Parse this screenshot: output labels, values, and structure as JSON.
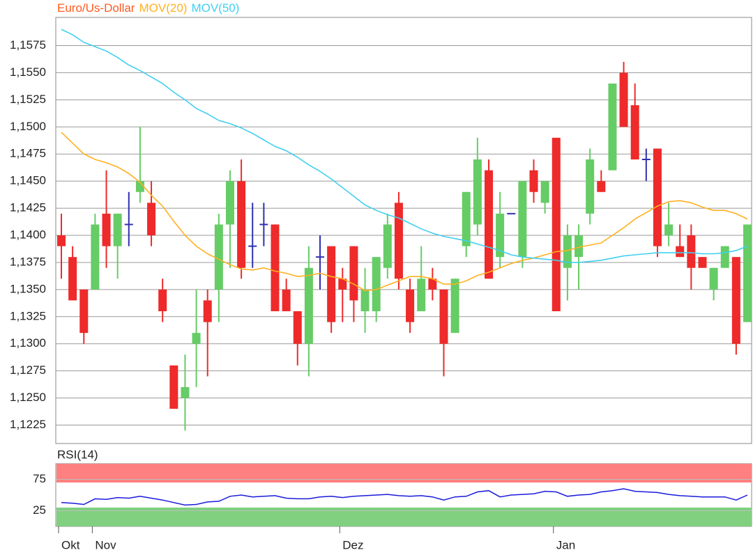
{
  "chart_data": [
    {
      "type": "candlestick",
      "up_color": "#66cc66",
      "down_color": "#ee2a2a",
      "flat_color": "#3030b0",
      "series": [
        {
          "name": "Euro/Us-Dollar",
          "color": "#ff5a1f",
          "open": [
            1.14,
            1.138,
            1.135,
            1.135,
            1.142,
            1.139,
            1.141,
            1.144,
            1.143,
            1.135,
            1.128,
            1.125,
            1.13,
            1.134,
            1.135,
            1.141,
            1.145,
            1.139,
            1.141,
            1.141,
            1.135,
            1.133,
            1.13,
            1.138,
            1.139,
            1.136,
            1.139,
            1.133,
            1.133,
            1.137,
            1.143,
            1.135,
            1.133,
            1.136,
            1.135,
            1.131,
            1.139,
            1.141,
            1.146,
            1.138,
            1.142,
            1.138,
            1.146,
            1.143,
            1.149,
            1.137,
            1.138,
            1.142,
            1.145,
            1.146,
            1.155,
            1.152,
            1.147,
            1.148,
            1.14,
            1.139,
            1.14,
            1.138,
            1.135,
            1.137,
            1.138,
            1.132
          ],
          "high": [
            1.142,
            1.139,
            1.135,
            1.142,
            1.146,
            1.142,
            1.144,
            1.15,
            1.145,
            1.136,
            1.128,
            1.129,
            1.135,
            1.135,
            1.142,
            1.146,
            1.147,
            1.143,
            1.143,
            1.141,
            1.136,
            1.133,
            1.139,
            1.14,
            1.139,
            1.137,
            1.139,
            1.137,
            1.138,
            1.142,
            1.144,
            1.136,
            1.139,
            1.137,
            1.135,
            1.136,
            1.144,
            1.149,
            1.147,
            1.144,
            1.142,
            1.145,
            1.147,
            1.145,
            1.149,
            1.141,
            1.141,
            1.148,
            1.146,
            1.154,
            1.156,
            1.154,
            1.148,
            1.148,
            1.143,
            1.141,
            1.141,
            1.138,
            1.137,
            1.139,
            1.138,
            1.141
          ],
          "low": [
            1.136,
            1.134,
            1.13,
            1.135,
            1.137,
            1.136,
            1.139,
            1.143,
            1.139,
            1.132,
            1.124,
            1.122,
            1.126,
            1.127,
            1.132,
            1.137,
            1.136,
            1.137,
            1.139,
            1.133,
            1.133,
            1.128,
            1.127,
            1.135,
            1.131,
            1.132,
            1.132,
            1.131,
            1.132,
            1.136,
            1.135,
            1.131,
            1.133,
            1.134,
            1.127,
            1.131,
            1.138,
            1.14,
            1.136,
            1.137,
            1.142,
            1.137,
            1.143,
            1.142,
            1.133,
            1.134,
            1.135,
            1.141,
            1.144,
            1.146,
            1.15,
            1.147,
            1.145,
            1.138,
            1.139,
            1.138,
            1.135,
            1.137,
            1.134,
            1.137,
            1.129,
            1.132
          ],
          "close": [
            1.139,
            1.134,
            1.131,
            1.141,
            1.139,
            1.142,
            1.141,
            1.145,
            1.14,
            1.133,
            1.124,
            1.126,
            1.131,
            1.132,
            1.141,
            1.145,
            1.137,
            1.139,
            1.141,
            1.133,
            1.133,
            1.13,
            1.137,
            1.138,
            1.132,
            1.135,
            1.134,
            1.135,
            1.138,
            1.141,
            1.136,
            1.132,
            1.136,
            1.135,
            1.13,
            1.136,
            1.144,
            1.147,
            1.136,
            1.142,
            1.142,
            1.145,
            1.144,
            1.145,
            1.133,
            1.14,
            1.14,
            1.147,
            1.144,
            1.154,
            1.15,
            1.147,
            1.147,
            1.139,
            1.141,
            1.138,
            1.137,
            1.137,
            1.137,
            1.139,
            1.13,
            1.141
          ]
        },
        {
          "name": "MOV(20)",
          "color": "#ffb020",
          "values": [
            1.1495,
            1.1485,
            1.1475,
            1.147,
            1.1467,
            1.1463,
            1.1457,
            1.1449,
            1.1437,
            1.1427,
            1.1413,
            1.14,
            1.139,
            1.1383,
            1.1378,
            1.1373,
            1.1369,
            1.1368,
            1.137,
            1.1367,
            1.1365,
            1.1362,
            1.1363,
            1.1365,
            1.1362,
            1.136,
            1.1355,
            1.1349,
            1.135,
            1.1354,
            1.1358,
            1.1362,
            1.1362,
            1.136,
            1.1355,
            1.1355,
            1.1358,
            1.1363,
            1.1366,
            1.137,
            1.1374,
            1.1377,
            1.1379,
            1.1382,
            1.1385,
            1.1386,
            1.1389,
            1.1391,
            1.1393,
            1.14,
            1.1407,
            1.1415,
            1.1421,
            1.1427,
            1.1431,
            1.1432,
            1.143,
            1.1426,
            1.1423,
            1.1423,
            1.142,
            1.1415
          ]
        },
        {
          "name": "MOV(50)",
          "color": "#40d0f0",
          "values": [
            1.159,
            1.1585,
            1.1578,
            1.1574,
            1.157,
            1.1564,
            1.1557,
            1.1552,
            1.1546,
            1.154,
            1.1532,
            1.1525,
            1.1517,
            1.1512,
            1.1506,
            1.1503,
            1.1499,
            1.1494,
            1.1488,
            1.1482,
            1.1478,
            1.1472,
            1.1465,
            1.1459,
            1.1452,
            1.1444,
            1.1436,
            1.1428,
            1.1423,
            1.1419,
            1.1416,
            1.1411,
            1.1406,
            1.1402,
            1.1399,
            1.1397,
            1.1395,
            1.1392,
            1.1389,
            1.1386,
            1.1382,
            1.138,
            1.1379,
            1.1378,
            1.1377,
            1.1375,
            1.1375,
            1.1376,
            1.1377,
            1.1379,
            1.1381,
            1.1382,
            1.1383,
            1.1384,
            1.1384,
            1.1384,
            1.1384,
            1.1383,
            1.1383,
            1.1384,
            1.1386,
            1.139
          ]
        }
      ],
      "ylim": [
        1.1208,
        1.1601
      ],
      "yticks": [
        {
          "value": 1.1225,
          "label": "1,1225"
        },
        {
          "value": 1.125,
          "label": "1,1250"
        },
        {
          "value": 1.1275,
          "label": "1,1275"
        },
        {
          "value": 1.13,
          "label": "1,1300"
        },
        {
          "value": 1.1325,
          "label": "1,1325"
        },
        {
          "value": 1.135,
          "label": "1,1350"
        },
        {
          "value": 1.1375,
          "label": "1,1375"
        },
        {
          "value": 1.14,
          "label": "1,1400"
        },
        {
          "value": 1.1425,
          "label": "1,1425"
        },
        {
          "value": 1.145,
          "label": "1,1450"
        },
        {
          "value": 1.1475,
          "label": "1,1475"
        },
        {
          "value": 1.15,
          "label": "1,1500"
        },
        {
          "value": 1.1525,
          "label": "1,1525"
        },
        {
          "value": 1.155,
          "label": "1,1550"
        },
        {
          "value": 1.1575,
          "label": "1,1575"
        }
      ],
      "grid": true
    },
    {
      "type": "line",
      "categories": [
        "Okt",
        null,
        null,
        "Nov",
        null,
        null,
        null,
        null,
        null,
        null,
        null,
        null,
        null,
        null,
        null,
        null,
        null,
        null,
        null,
        null,
        null,
        null,
        null,
        null,
        null,
        "Dez",
        null,
        null,
        null,
        null,
        null,
        null,
        null,
        null,
        null,
        null,
        null,
        null,
        null,
        null,
        null,
        null,
        null,
        null,
        "Jan",
        null,
        null,
        null,
        null,
        null,
        null,
        null,
        null,
        null,
        null,
        null,
        null,
        null,
        null,
        null,
        null,
        null
      ],
      "series": [
        {
          "name": "RSI(14)",
          "color": "#1a1adc",
          "values": [
            38,
            37,
            35,
            44,
            43,
            46,
            45,
            48,
            45,
            42,
            38,
            34,
            35,
            39,
            40,
            48,
            50,
            47,
            48,
            49,
            45,
            44,
            44,
            47,
            48,
            46,
            48,
            49,
            50,
            51,
            49,
            48,
            49,
            47,
            42,
            47,
            48,
            55,
            57,
            47,
            50,
            51,
            52,
            56,
            55,
            48,
            50,
            51,
            55,
            57,
            60,
            56,
            55,
            54,
            51,
            49,
            48,
            47,
            47,
            47,
            42,
            50
          ]
        }
      ],
      "bands": [
        {
          "from": 70,
          "to": 100,
          "color": "#ff8080"
        },
        {
          "from": 0,
          "to": 30,
          "color": "#80d080"
        }
      ],
      "ylim": [
        0,
        100
      ],
      "yticks": [
        25,
        75
      ],
      "grid": true
    }
  ]
}
